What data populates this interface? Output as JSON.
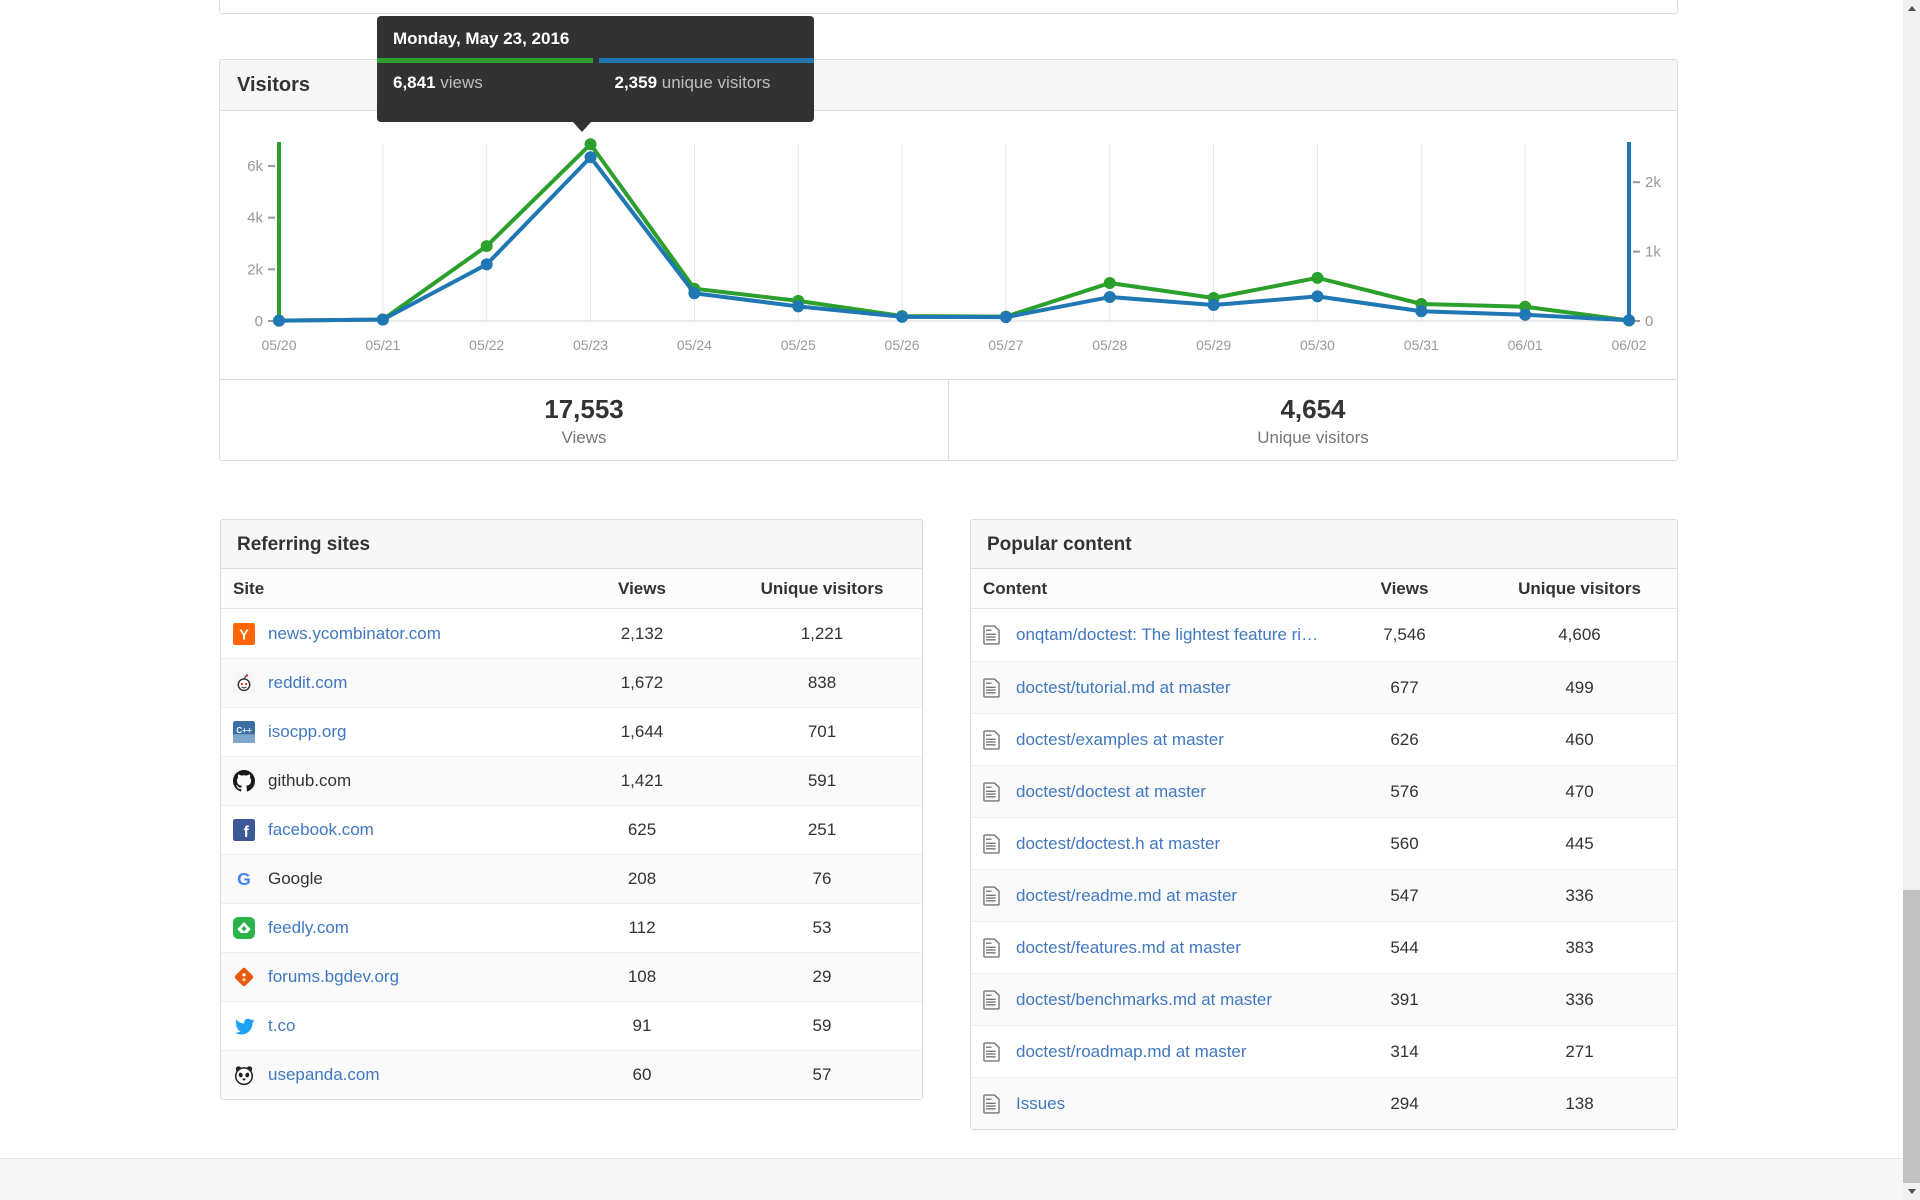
{
  "tooltip": {
    "date": "Monday, May 23, 2016",
    "views_value": "6,841",
    "views_label": " views",
    "unique_value": "2,359",
    "unique_label": " unique visitors"
  },
  "visitors_panel": {
    "title": "Visitors",
    "summary": [
      {
        "value": "17,553",
        "label": "Views"
      },
      {
        "value": "4,654",
        "label": "Unique visitors"
      }
    ]
  },
  "chart_data": {
    "type": "line",
    "title": "Visitors",
    "x": [
      "05/20",
      "05/21",
      "05/22",
      "05/23",
      "05/24",
      "05/25",
      "05/26",
      "05/27",
      "05/28",
      "05/29",
      "05/30",
      "05/31",
      "06/01",
      "06/02"
    ],
    "series": [
      {
        "name": "views",
        "color": "#2ca02c",
        "axis": "left",
        "values": [
          15,
          60,
          2900,
          6841,
          1250,
          780,
          190,
          170,
          1470,
          890,
          1670,
          660,
          550,
          20
        ]
      },
      {
        "name": "unique visitors",
        "color": "#1f77b4",
        "axis": "right",
        "values": [
          5,
          20,
          816,
          2359,
          400,
          210,
          60,
          55,
          345,
          230,
          355,
          140,
          90,
          10
        ]
      }
    ],
    "left_axis": {
      "ticks": [
        {
          "label": "0",
          "value": 0
        },
        {
          "label": "2k",
          "value": 2000
        },
        {
          "label": "4k",
          "value": 4000
        },
        {
          "label": "6k",
          "value": 6000
        }
      ],
      "max": 6850,
      "color": "#2ca02c"
    },
    "right_axis": {
      "ticks": [
        {
          "label": "0",
          "value": 0
        },
        {
          "label": "1k",
          "value": 1000
        },
        {
          "label": "2k",
          "value": 2000
        }
      ],
      "max": 2550,
      "color": "#1f77b4"
    },
    "totals": {
      "views": "17,553",
      "unique_visitors": "4,654"
    },
    "grid": true,
    "highlighted_point": {
      "x": "05/23",
      "views": 6841,
      "unique_visitors": 2359
    }
  },
  "referring": {
    "title": "Referring sites",
    "columns": [
      "Site",
      "Views",
      "Unique visitors"
    ],
    "rows": [
      {
        "site": "news.ycombinator.com",
        "views": "2,132",
        "unique": "1,221",
        "icon": "hackernews-icon",
        "link": true
      },
      {
        "site": "reddit.com",
        "views": "1,672",
        "unique": "838",
        "icon": "reddit-icon",
        "link": true
      },
      {
        "site": "isocpp.org",
        "views": "1,644",
        "unique": "701",
        "icon": "isocpp-icon",
        "link": true
      },
      {
        "site": "github.com",
        "views": "1,421",
        "unique": "591",
        "icon": "github-icon",
        "link": false
      },
      {
        "site": "facebook.com",
        "views": "625",
        "unique": "251",
        "icon": "facebook-icon",
        "link": true
      },
      {
        "site": "Google",
        "views": "208",
        "unique": "76",
        "icon": "google-icon",
        "link": false
      },
      {
        "site": "feedly.com",
        "views": "112",
        "unique": "53",
        "icon": "feedly-icon",
        "link": true
      },
      {
        "site": "forums.bgdev.org",
        "views": "108",
        "unique": "29",
        "icon": "bgdev-icon",
        "link": true
      },
      {
        "site": "t.co",
        "views": "91",
        "unique": "59",
        "icon": "twitter-icon",
        "link": true
      },
      {
        "site": "usepanda.com",
        "views": "60",
        "unique": "57",
        "icon": "panda-icon",
        "link": true
      }
    ]
  },
  "popular": {
    "title": "Popular content",
    "columns": [
      "Content",
      "Views",
      "Unique visitors"
    ],
    "rows": [
      {
        "content": "onqtam/doctest: The lightest feature rich...",
        "views": "7,546",
        "unique": "4,606"
      },
      {
        "content": "doctest/tutorial.md at master",
        "views": "677",
        "unique": "499"
      },
      {
        "content": "doctest/examples at master",
        "views": "626",
        "unique": "460"
      },
      {
        "content": "doctest/doctest at master",
        "views": "576",
        "unique": "470"
      },
      {
        "content": "doctest/doctest.h at master",
        "views": "560",
        "unique": "445"
      },
      {
        "content": "doctest/readme.md at master",
        "views": "547",
        "unique": "336"
      },
      {
        "content": "doctest/features.md at master",
        "views": "544",
        "unique": "383"
      },
      {
        "content": "doctest/benchmarks.md at master",
        "views": "391",
        "unique": "336"
      },
      {
        "content": "doctest/roadmap.md at master",
        "views": "314",
        "unique": "271"
      },
      {
        "content": "Issues",
        "views": "294",
        "unique": "138"
      }
    ]
  }
}
